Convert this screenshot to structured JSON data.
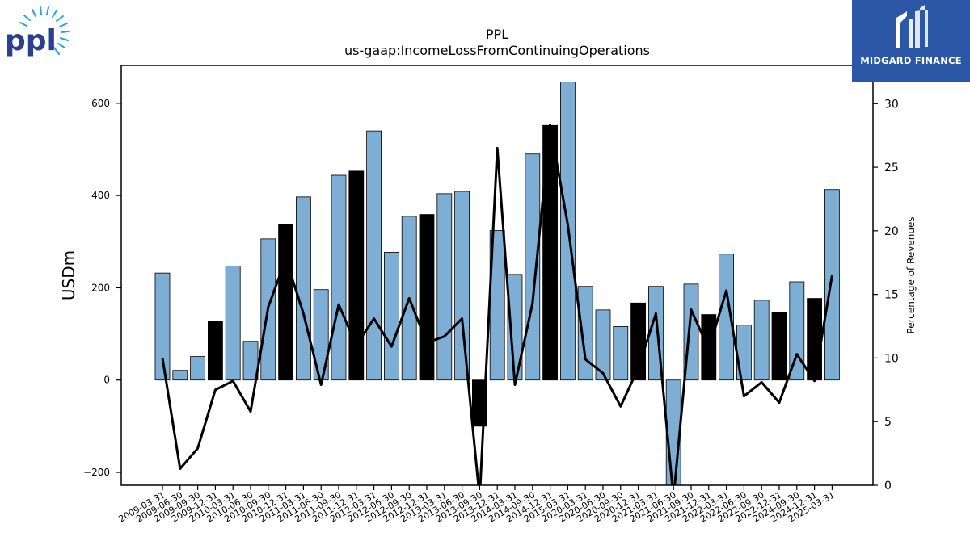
{
  "brand": {
    "logo_text": "ppl",
    "badge_text": "MIDGARD FINANCE"
  },
  "colors": {
    "bar_regular": "#7eaed3",
    "bar_q4": "#000000",
    "line": "#000000",
    "badge_bg": "#2b57a6",
    "logo_blue": "#2a3f8f",
    "logo_rays": "#22a8e0"
  },
  "chart_data": {
    "type": "bar",
    "title": "PPL",
    "subtitle": "us-gaap:IncomeLossFromContinuingOperations",
    "ylabel": "USDm",
    "y2label": "Percentage of Revenues",
    "ylim": [
      -228,
      682
    ],
    "y2lim": [
      0,
      33
    ],
    "yticks": [
      -200,
      0,
      200,
      400,
      600
    ],
    "y2ticks": [
      0,
      5,
      10,
      15,
      20,
      25,
      30
    ],
    "categories": [
      "2009-03-31",
      "2009-06-30",
      "2009-09-30",
      "2009-12-31",
      "2010-03-31",
      "2010-06-30",
      "2010-09-30",
      "2010-12-31",
      "2011-03-31",
      "2011-06-30",
      "2011-09-30",
      "2011-12-31",
      "2012-03-31",
      "2012-06-30",
      "2012-09-30",
      "2012-12-31",
      "2013-03-31",
      "2013-06-30",
      "2013-09-30",
      "2013-12-31",
      "2014-03-31",
      "2014-09-30",
      "2014-12-31",
      "2015-03-31",
      "2020-03-31",
      "2020-06-30",
      "2020-09-30",
      "2020-12-31",
      "2021-03-31",
      "2021-06-30",
      "2021-09-30",
      "2021-12-31",
      "2022-03-31",
      "2022-06-30",
      "2022-09-30",
      "2022-12-31",
      "2024-09-30",
      "2024-12-31",
      "2025-03-31"
    ],
    "series": [
      {
        "type": "bar",
        "axis": "left",
        "values": [
          232,
          21,
          51,
          127,
          247,
          84,
          306,
          337,
          397,
          196,
          444,
          453,
          540,
          277,
          355,
          359,
          404,
          409,
          -100,
          324,
          229,
          490,
          552,
          646,
          203,
          152,
          116,
          167,
          203,
          -228,
          208,
          142,
          273,
          119,
          173,
          147,
          213,
          177,
          413
        ],
        "highlight": [
          false,
          false,
          false,
          true,
          false,
          false,
          false,
          true,
          false,
          false,
          false,
          true,
          false,
          false,
          false,
          true,
          false,
          false,
          true,
          false,
          false,
          false,
          true,
          false,
          false,
          false,
          false,
          true,
          false,
          false,
          false,
          true,
          false,
          false,
          false,
          true,
          false,
          true,
          false
        ]
      },
      {
        "type": "line",
        "axis": "right",
        "values": [
          10.0,
          1.3,
          2.9,
          7.5,
          8.2,
          5.8,
          14.0,
          17.8,
          13.5,
          7.9,
          14.2,
          11.0,
          13.1,
          10.9,
          14.7,
          11.2,
          11.7,
          13.1,
          -1.0,
          26.5,
          7.9,
          14.3,
          28.3,
          20.5,
          9.9,
          8.8,
          6.2,
          9.2,
          13.5,
          -1.0,
          13.8,
          10.7,
          15.3,
          7.0,
          8.1,
          6.5,
          10.3,
          8.2,
          16.5
        ]
      }
    ],
    "grid": false
  }
}
